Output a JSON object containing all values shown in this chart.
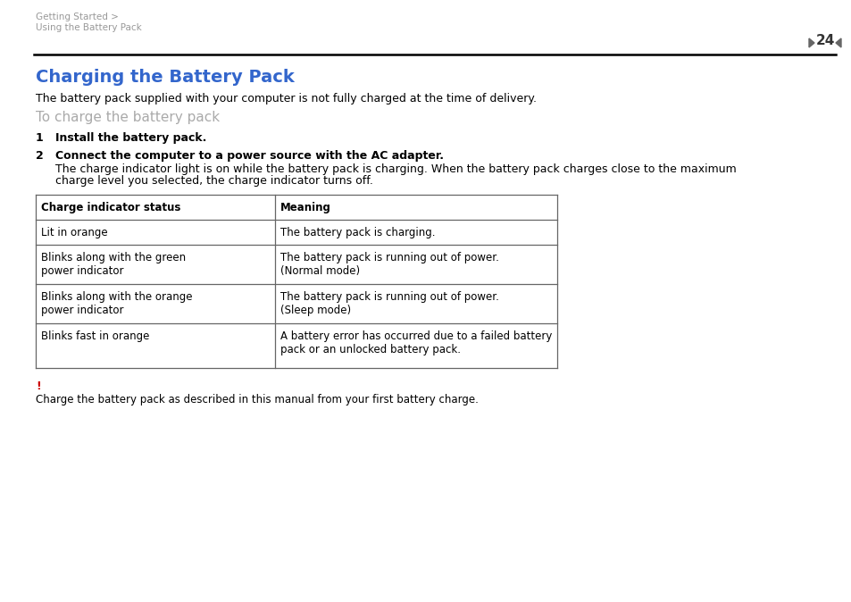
{
  "bg_color": "#ffffff",
  "header_breadcrumb_line1": "Getting Started >",
  "header_breadcrumb_line2": "Using the Battery Pack",
  "header_breadcrumb_color": "#999999",
  "page_number": "24",
  "page_num_color": "#333333",
  "separator_color": "#000000",
  "title": "Charging the Battery Pack",
  "title_color": "#3366cc",
  "intro_text": "The battery pack supplied with your computer is not fully charged at the time of delivery.",
  "subheading": "To charge the battery pack",
  "subheading_color": "#aaaaaa",
  "step1_num": "1",
  "step1_text": "Install the battery pack.",
  "step2_num": "2",
  "step2_text_line1": "Connect the computer to a power source with the AC adapter.",
  "step2_text_line2": "The charge indicator light is on while the battery pack is charging. When the battery pack charges close to the maximum",
  "step2_text_line3": "charge level you selected, the charge indicator turns off.",
  "table_header_col1": "Charge indicator status",
  "table_header_col2": "Meaning",
  "table_border_color": "#666666",
  "table_rows": [
    [
      "Lit in orange",
      "The battery pack is charging."
    ],
    [
      "Blinks along with the green\npower indicator",
      "The battery pack is running out of power.\n(Normal mode)"
    ],
    [
      "Blinks along with the orange\npower indicator",
      "The battery pack is running out of power.\n(Sleep mode)"
    ],
    [
      "Blinks fast in orange",
      "A battery error has occurred due to a failed battery\npack or an unlocked battery pack."
    ]
  ],
  "warning_exclamation": "!",
  "warning_exclamation_color": "#cc0000",
  "warning_text": "Charge the battery pack as described in this manual from your first battery charge.",
  "text_color": "#000000",
  "arrow_color": "#666666",
  "fig_width": 9.54,
  "fig_height": 6.74,
  "dpi": 100
}
